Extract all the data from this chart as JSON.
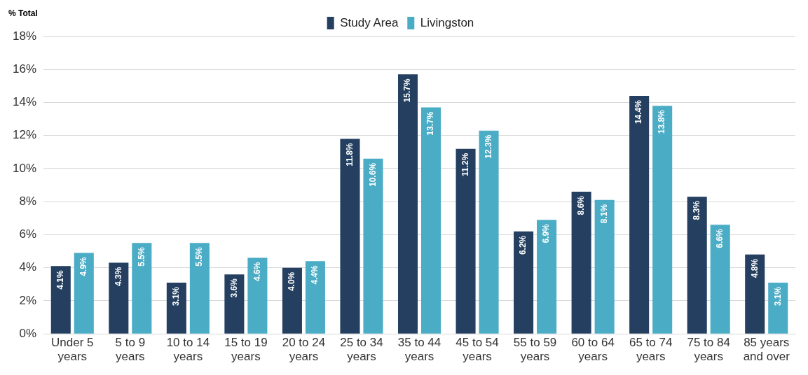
{
  "chart_data": {
    "type": "bar",
    "annotations": [
      "% Total"
    ],
    "categories": [
      "Under 5 years",
      "5 to 9 years",
      "10 to 14 years",
      "15 to 19 years",
      "20 to 24 years",
      "25 to 34 years",
      "35 to 44 years",
      "45 to 54 years",
      "55 to 59 years",
      "60 to 64 years",
      "65 to 74 years",
      "75 to 84 years",
      "85 years and over"
    ],
    "series": [
      {
        "name": "Study Area",
        "color": "#243f60",
        "values": [
          4.1,
          4.3,
          3.1,
          3.6,
          4.0,
          11.8,
          15.7,
          11.2,
          6.2,
          8.6,
          14.4,
          8.3,
          4.8
        ],
        "value_labels": [
          "4.1%",
          "4.3%",
          "3.1%",
          "3.6%",
          "4.0%",
          "11.8%",
          "15.7%",
          "11.2%",
          "6.2%",
          "8.6%",
          "14.4%",
          "8.3%",
          "4.8%"
        ]
      },
      {
        "name": "Livingston",
        "color": "#4bacc6",
        "values": [
          4.9,
          5.5,
          5.5,
          4.6,
          4.4,
          10.6,
          13.7,
          12.3,
          6.9,
          8.1,
          13.8,
          6.6,
          3.1
        ],
        "value_labels": [
          "4.9%",
          "5.5%",
          "5.5%",
          "4.6%",
          "4.4%",
          "10.6%",
          "13.7%",
          "12.3%",
          "6.9%",
          "8.1%",
          "13.8%",
          "6.6%",
          "3.1%"
        ]
      }
    ],
    "ylim": [
      0,
      18
    ],
    "yticks": [
      {
        "value": 0,
        "label": "0%"
      },
      {
        "value": 2,
        "label": "2%"
      },
      {
        "value": 4,
        "label": "4%"
      },
      {
        "value": 6,
        "label": "6%"
      },
      {
        "value": 8,
        "label": "8%"
      },
      {
        "value": 10,
        "label": "10%"
      },
      {
        "value": 12,
        "label": "12%"
      },
      {
        "value": 14,
        "label": "14%"
      },
      {
        "value": 16,
        "label": "16%"
      },
      {
        "value": 18,
        "label": "18%"
      }
    ],
    "grid": "y",
    "legend": "top"
  }
}
